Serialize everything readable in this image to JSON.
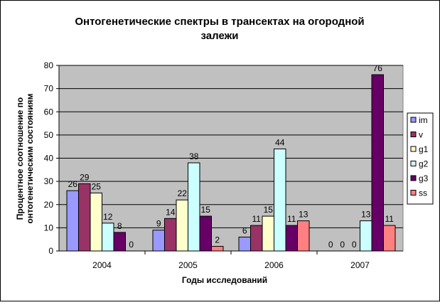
{
  "chart_data": {
    "type": "bar",
    "title_lines": [
      "Онтогенетические спектры в трансектах на огородной",
      "залежи"
    ],
    "xlabel": "Годы исследований",
    "ylabel_lines": [
      "Процентное соотношение по",
      "онтогенетическим состояниям"
    ],
    "categories": [
      "2004",
      "2005",
      "2006",
      "2007"
    ],
    "ylim": [
      0,
      80
    ],
    "yticks": [
      "0",
      "10",
      "20",
      "30",
      "40",
      "50",
      "60",
      "70",
      "80"
    ],
    "grid": true,
    "legend_position": "right",
    "series": [
      {
        "name": "im",
        "color": "#9999ff",
        "values": [
          26,
          9,
          6,
          0
        ],
        "labels": [
          "26",
          "9",
          "6",
          "0"
        ]
      },
      {
        "name": "v",
        "color": "#993366",
        "values": [
          29,
          14,
          11,
          0
        ],
        "labels": [
          "29",
          "14",
          "11",
          "0"
        ]
      },
      {
        "name": "g1",
        "color": "#ffffcc",
        "values": [
          25,
          22,
          15,
          0
        ],
        "labels": [
          "25",
          "22",
          "15",
          "0"
        ]
      },
      {
        "name": "g2",
        "color": "#ccffff",
        "values": [
          12,
          38,
          44,
          13
        ],
        "labels": [
          "12",
          "38",
          "44",
          "13"
        ]
      },
      {
        "name": "g3",
        "color": "#660066",
        "values": [
          8,
          15,
          11,
          76
        ],
        "labels": [
          "8",
          "15",
          "11",
          "76"
        ]
      },
      {
        "name": "ss",
        "color": "#ff8080",
        "values": [
          0,
          2,
          13,
          11
        ],
        "labels": [
          "0",
          "2",
          "13",
          "11"
        ]
      }
    ],
    "plot_background": "#c0c0c0"
  }
}
